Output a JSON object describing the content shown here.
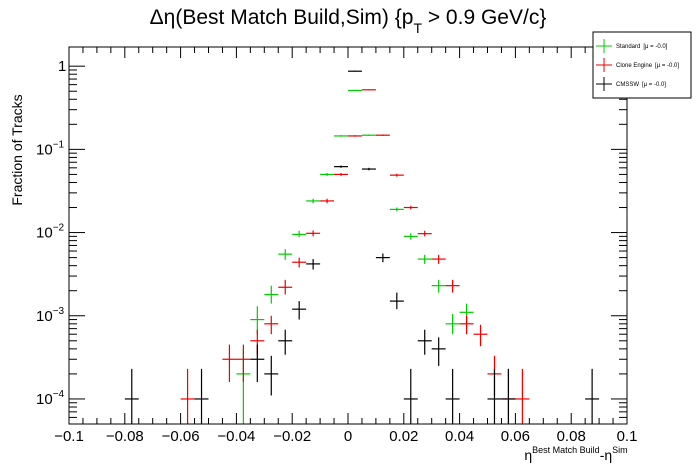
{
  "chart_data": {
    "type": "scatter",
    "title": "Δη(Best Match Build,Sim) {p",
    "title_sub": "T",
    "title_tail": " > 0.9 GeV/c}",
    "xlabel": "η",
    "xlabel_sup1": "Best Match Build",
    "xlabel_mid": "-η",
    "xlabel_sup2": "Sim",
    "ylabel": "Fraction of Tracks",
    "log_y": true,
    "xlim": [
      -0.1,
      0.1
    ],
    "ylim": [
      5e-05,
      1.7
    ],
    "bin_width": 0.005,
    "xticks": [
      {
        "v": -0.1,
        "label": "−0.1"
      },
      {
        "v": -0.08,
        "label": "−0.08"
      },
      {
        "v": -0.06,
        "label": "−0.06"
      },
      {
        "v": -0.04,
        "label": "−0.04"
      },
      {
        "v": -0.02,
        "label": "−0.02"
      },
      {
        "v": 0,
        "label": "0"
      },
      {
        "v": 0.02,
        "label": "0.02"
      },
      {
        "v": 0.04,
        "label": "0.04"
      },
      {
        "v": 0.06,
        "label": "0.06"
      },
      {
        "v": 0.08,
        "label": "0.08"
      },
      {
        "v": 0.1,
        "label": "0.1"
      }
    ],
    "yticks": [
      {
        "v": 1,
        "base": "1",
        "exp": ""
      },
      {
        "v": 0.1,
        "base": "10",
        "exp": "−1"
      },
      {
        "v": 0.01,
        "base": "10",
        "exp": "−2"
      },
      {
        "v": 0.001,
        "base": "10",
        "exp": "−3"
      },
      {
        "v": 0.0001,
        "base": "10",
        "exp": "−4"
      }
    ],
    "legend": [
      {
        "name": "Standard",
        "mu": "[μ = -0.0]",
        "color": "#00cc00"
      },
      {
        "name": "Clone Engine",
        "mu": "[μ = -0.0]",
        "color": "#ee0000"
      },
      {
        "name": "CMSSW",
        "mu": "[μ = -0.0]",
        "color": "#000000"
      }
    ],
    "series": [
      {
        "name": "Standard",
        "color": "#00cc00",
        "points": [
          {
            "x": -0.0375,
            "y": 0.0002,
            "lo": 5e-05,
            "hi": 0.0004
          },
          {
            "x": -0.0325,
            "y": 0.0009,
            "lo": 0.0006,
            "hi": 0.0013
          },
          {
            "x": -0.0275,
            "y": 0.0018,
            "lo": 0.0014,
            "hi": 0.0023
          },
          {
            "x": -0.0225,
            "y": 0.0055,
            "lo": 0.0047,
            "hi": 0.0063
          },
          {
            "x": -0.0175,
            "y": 0.0095,
            "lo": 0.0088,
            "hi": 0.0105
          },
          {
            "x": -0.0125,
            "y": 0.024,
            "lo": 0.0225,
            "hi": 0.0255
          },
          {
            "x": -0.0075,
            "y": 0.05,
            "lo": 0.048,
            "hi": 0.052
          },
          {
            "x": -0.0025,
            "y": 0.145,
            "lo": 0.142,
            "hi": 0.148
          },
          {
            "x": 0.0025,
            "y": 0.51,
            "lo": 0.505,
            "hi": 0.515
          },
          {
            "x": 0.0075,
            "y": 0.148,
            "lo": 0.145,
            "hi": 0.151
          },
          {
            "x": 0.0175,
            "y": 0.019,
            "lo": 0.018,
            "hi": 0.02
          },
          {
            "x": 0.0225,
            "y": 0.009,
            "lo": 0.0082,
            "hi": 0.0098
          },
          {
            "x": 0.0275,
            "y": 0.0048,
            "lo": 0.0042,
            "hi": 0.0054
          },
          {
            "x": 0.0325,
            "y": 0.0023,
            "lo": 0.0019,
            "hi": 0.0027
          },
          {
            "x": 0.0375,
            "y": 0.0008,
            "lo": 0.0006,
            "hi": 0.00105
          },
          {
            "x": 0.0425,
            "y": 0.0011,
            "lo": 0.0008,
            "hi": 0.0014
          }
        ]
      },
      {
        "name": "Clone Engine",
        "color": "#ee0000",
        "points": [
          {
            "x": -0.0575,
            "y": 0.0001,
            "lo": 4.5e-05,
            "hi": 0.00023
          },
          {
            "x": -0.0425,
            "y": 0.0003,
            "lo": 0.00016,
            "hi": 0.00045
          },
          {
            "x": -0.0375,
            "y": 0.0003,
            "lo": 0.00016,
            "hi": 0.00045
          },
          {
            "x": -0.0325,
            "y": 0.0005,
            "lo": 0.00034,
            "hi": 0.00068
          },
          {
            "x": -0.0275,
            "y": 0.0008,
            "lo": 0.0006,
            "hi": 0.001
          },
          {
            "x": -0.0225,
            "y": 0.0022,
            "lo": 0.0018,
            "hi": 0.0027
          },
          {
            "x": -0.0175,
            "y": 0.0044,
            "lo": 0.0038,
            "hi": 0.005
          },
          {
            "x": -0.0125,
            "y": 0.0098,
            "lo": 0.009,
            "hi": 0.0106
          },
          {
            "x": -0.0075,
            "y": 0.024,
            "lo": 0.0225,
            "hi": 0.0255
          },
          {
            "x": -0.0025,
            "y": 0.05,
            "lo": 0.048,
            "hi": 0.052
          },
          {
            "x": 0.0025,
            "y": 0.145,
            "lo": 0.142,
            "hi": 0.148
          },
          {
            "x": 0.0075,
            "y": 0.52,
            "lo": 0.515,
            "hi": 0.525
          },
          {
            "x": 0.0125,
            "y": 0.148,
            "lo": 0.145,
            "hi": 0.151
          },
          {
            "x": 0.0175,
            "y": 0.049,
            "lo": 0.047,
            "hi": 0.051
          },
          {
            "x": 0.0225,
            "y": 0.02,
            "lo": 0.019,
            "hi": 0.021
          },
          {
            "x": 0.0275,
            "y": 0.0097,
            "lo": 0.009,
            "hi": 0.0105
          },
          {
            "x": 0.0325,
            "y": 0.0048,
            "lo": 0.0042,
            "hi": 0.0054
          },
          {
            "x": 0.0375,
            "y": 0.0023,
            "lo": 0.0019,
            "hi": 0.0027
          },
          {
            "x": 0.0425,
            "y": 0.0008,
            "lo": 0.0006,
            "hi": 0.001
          },
          {
            "x": 0.0475,
            "y": 0.0006,
            "lo": 0.00043,
            "hi": 0.00078
          },
          {
            "x": 0.0525,
            "y": 0.0002,
            "lo": 0.00011,
            "hi": 0.00033
          },
          {
            "x": 0.0575,
            "y": 0.0001,
            "lo": 4.5e-05,
            "hi": 0.00023
          },
          {
            "x": 0.0625,
            "y": 0.0001,
            "lo": 4.5e-05,
            "hi": 0.00023
          }
        ]
      },
      {
        "name": "CMSSW",
        "color": "#000000",
        "points": [
          {
            "x": -0.0775,
            "y": 0.0001,
            "lo": 4.5e-05,
            "hi": 0.00023
          },
          {
            "x": -0.0525,
            "y": 0.0001,
            "lo": 4.5e-05,
            "hi": 0.00023
          },
          {
            "x": -0.0325,
            "y": 0.0003,
            "lo": 0.00016,
            "hi": 0.00045
          },
          {
            "x": -0.0275,
            "y": 0.0002,
            "lo": 0.00011,
            "hi": 0.00033
          },
          {
            "x": -0.0225,
            "y": 0.0005,
            "lo": 0.00034,
            "hi": 0.00068
          },
          {
            "x": -0.0175,
            "y": 0.0012,
            "lo": 0.0009,
            "hi": 0.0015
          },
          {
            "x": -0.0125,
            "y": 0.0042,
            "lo": 0.0036,
            "hi": 0.0048
          },
          {
            "x": -0.0025,
            "y": 0.062,
            "lo": 0.06,
            "hi": 0.064
          },
          {
            "x": 0.0025,
            "y": 0.87,
            "lo": 0.86,
            "hi": 0.88
          },
          {
            "x": 0.0075,
            "y": 0.058,
            "lo": 0.056,
            "hi": 0.06
          },
          {
            "x": 0.0125,
            "y": 0.005,
            "lo": 0.0044,
            "hi": 0.0056
          },
          {
            "x": 0.0175,
            "y": 0.0015,
            "lo": 0.0012,
            "hi": 0.0019
          },
          {
            "x": 0.0225,
            "y": 0.0001,
            "lo": 4.5e-05,
            "hi": 0.00023
          },
          {
            "x": 0.0275,
            "y": 0.0005,
            "lo": 0.00034,
            "hi": 0.00068
          },
          {
            "x": 0.0325,
            "y": 0.0004,
            "lo": 0.00025,
            "hi": 0.00055
          },
          {
            "x": 0.0375,
            "y": 0.0001,
            "lo": 4.5e-05,
            "hi": 0.00023
          },
          {
            "x": 0.0525,
            "y": 0.0001,
            "lo": 4.5e-05,
            "hi": 0.00023
          },
          {
            "x": 0.0575,
            "y": 0.0001,
            "lo": 4.5e-05,
            "hi": 0.00023
          },
          {
            "x": 0.0875,
            "y": 0.0001,
            "lo": 4.5e-05,
            "hi": 0.00023
          }
        ]
      }
    ]
  }
}
